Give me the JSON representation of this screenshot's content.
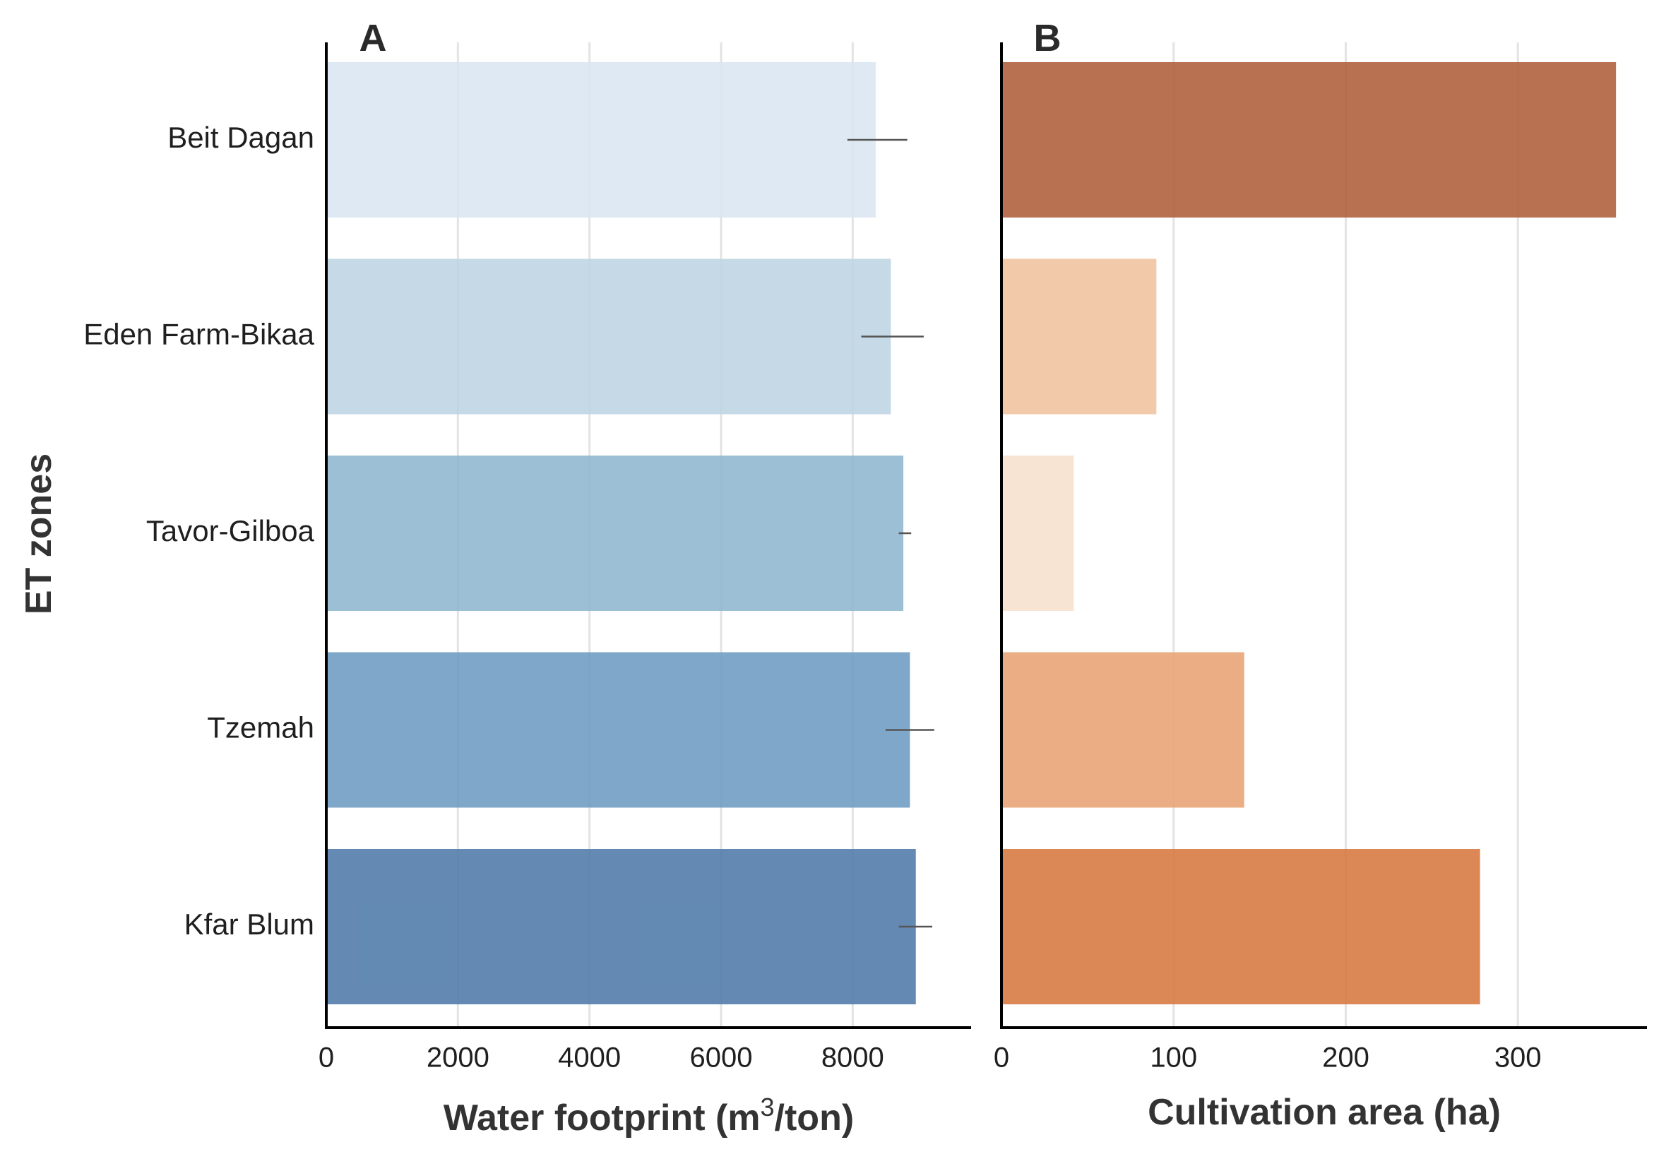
{
  "chart_data": {
    "type": "bar",
    "orientation": "horizontal",
    "ylabel": "ET zones",
    "categories": [
      "Beit Dagan",
      "Eden Farm-Bikaa",
      "Tavor-Gilboa",
      "Tzemah",
      "Kfar Blum"
    ],
    "panels": [
      {
        "label": "A",
        "xlabel_prefix": "Water footprint (m",
        "xlabel_sup": "3",
        "xlabel_suffix": "/ton)",
        "xlim": [
          0,
          9800
        ],
        "xticks": [
          0,
          2000,
          4000,
          6000,
          8000
        ],
        "grid": true,
        "values": [
          8350,
          8580,
          8770,
          8870,
          8960
        ],
        "error_low": [
          7920,
          8130,
          8700,
          8500,
          8700
        ],
        "error_high": [
          8830,
          9080,
          8890,
          9240,
          9210
        ],
        "colors": [
          "#dbe6f1",
          "#bdd4e3",
          "#8fb6cf",
          "#6c9bc2",
          "#4e7aa8"
        ]
      },
      {
        "label": "B",
        "xlabel": "Cultivation area (ha)",
        "xlim": [
          0,
          375
        ],
        "xticks": [
          0,
          100,
          200,
          300
        ],
        "grid": true,
        "values": [
          357,
          90,
          42,
          141,
          278
        ],
        "colors": [
          "#ae5f3a",
          "#f0c39d",
          "#f6e0cc",
          "#e8a272",
          "#d6773f"
        ]
      }
    ]
  }
}
